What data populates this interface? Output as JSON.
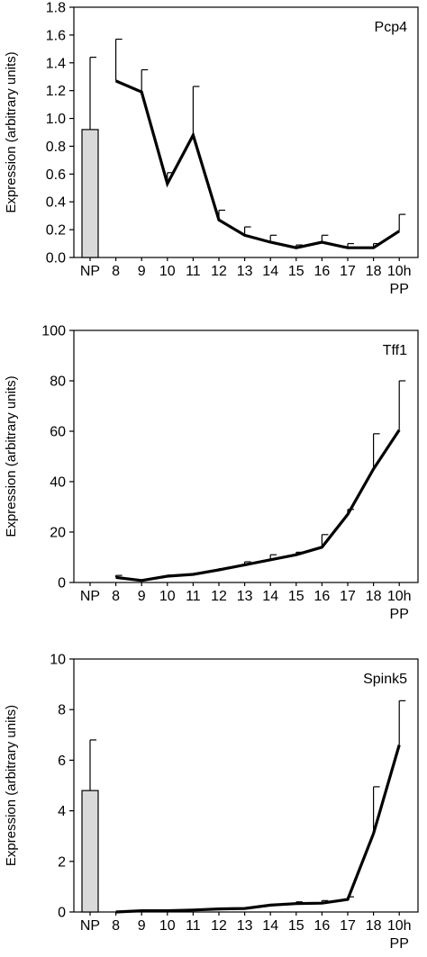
{
  "chart_data": [
    {
      "type": "line",
      "title": "Pcp4",
      "ylabel": "Expression (arbitrary units)",
      "xlabel": "",
      "categories": [
        "NP",
        "8",
        "9",
        "10",
        "11",
        "12",
        "13",
        "14",
        "15",
        "16",
        "17",
        "18",
        "10h"
      ],
      "category_sublabels": {
        "10h": "PP"
      },
      "ylim": [
        0,
        1.8
      ],
      "yticks": [
        "0.0",
        "0.2",
        "0.4",
        "0.6",
        "0.8",
        "1.0",
        "1.2",
        "1.4",
        "1.6",
        "1.8"
      ],
      "bar": {
        "category": "NP",
        "value": 0.92,
        "error": 0.52
      },
      "series": [
        {
          "values": [
            null,
            1.27,
            1.19,
            0.53,
            0.88,
            0.27,
            0.16,
            0.11,
            0.07,
            0.11,
            0.07,
            0.07,
            0.19
          ],
          "errors": [
            null,
            0.3,
            0.16,
            0.08,
            0.35,
            0.07,
            0.06,
            0.05,
            0.02,
            0.05,
            0.03,
            0.03,
            0.12
          ]
        }
      ],
      "grid": false
    },
    {
      "type": "line",
      "title": "Tff1",
      "ylabel": "Expression (arbitrary units)",
      "xlabel": "",
      "categories": [
        "NP",
        "8",
        "9",
        "10",
        "11",
        "12",
        "13",
        "14",
        "15",
        "16",
        "17",
        "18",
        "10h"
      ],
      "category_sublabels": {
        "10h": "PP"
      },
      "ylim": [
        0,
        100
      ],
      "yticks": [
        "0",
        "20",
        "40",
        "60",
        "80",
        "100"
      ],
      "bar": null,
      "series": [
        {
          "values": [
            null,
            2.0,
            0.8,
            2.5,
            3.2,
            5.0,
            7.0,
            9.0,
            11.0,
            14.0,
            27.0,
            45.0,
            60.5
          ],
          "errors": [
            null,
            0.8,
            0.3,
            0.4,
            0.4,
            0.5,
            1.2,
            2.0,
            1.0,
            5.0,
            2.0,
            14.0,
            19.5
          ]
        }
      ],
      "grid": false
    },
    {
      "type": "line",
      "title": "Spink5",
      "ylabel": "Expression (arbitrary units)",
      "xlabel": "",
      "categories": [
        "NP",
        "8",
        "9",
        "10",
        "11",
        "12",
        "13",
        "14",
        "15",
        "16",
        "17",
        "18",
        "10h"
      ],
      "category_sublabels": {
        "10h": "PP"
      },
      "ylim": [
        0,
        10
      ],
      "yticks": [
        "0",
        "2",
        "4",
        "6",
        "8",
        "10"
      ],
      "bar": {
        "category": "NP",
        "value": 4.8,
        "error": 2.0
      },
      "series": [
        {
          "values": [
            null,
            0.0,
            0.05,
            0.05,
            0.08,
            0.12,
            0.14,
            0.27,
            0.33,
            0.35,
            0.5,
            3.1,
            6.6
          ],
          "errors": [
            null,
            0.0,
            0.0,
            0.0,
            0.0,
            0.0,
            0.0,
            0.03,
            0.07,
            0.1,
            0.1,
            1.85,
            1.75
          ]
        }
      ],
      "grid": false
    }
  ],
  "colors": {
    "line": "#000000",
    "bar_fill": "#d9d9d9",
    "axis": "#000000"
  }
}
